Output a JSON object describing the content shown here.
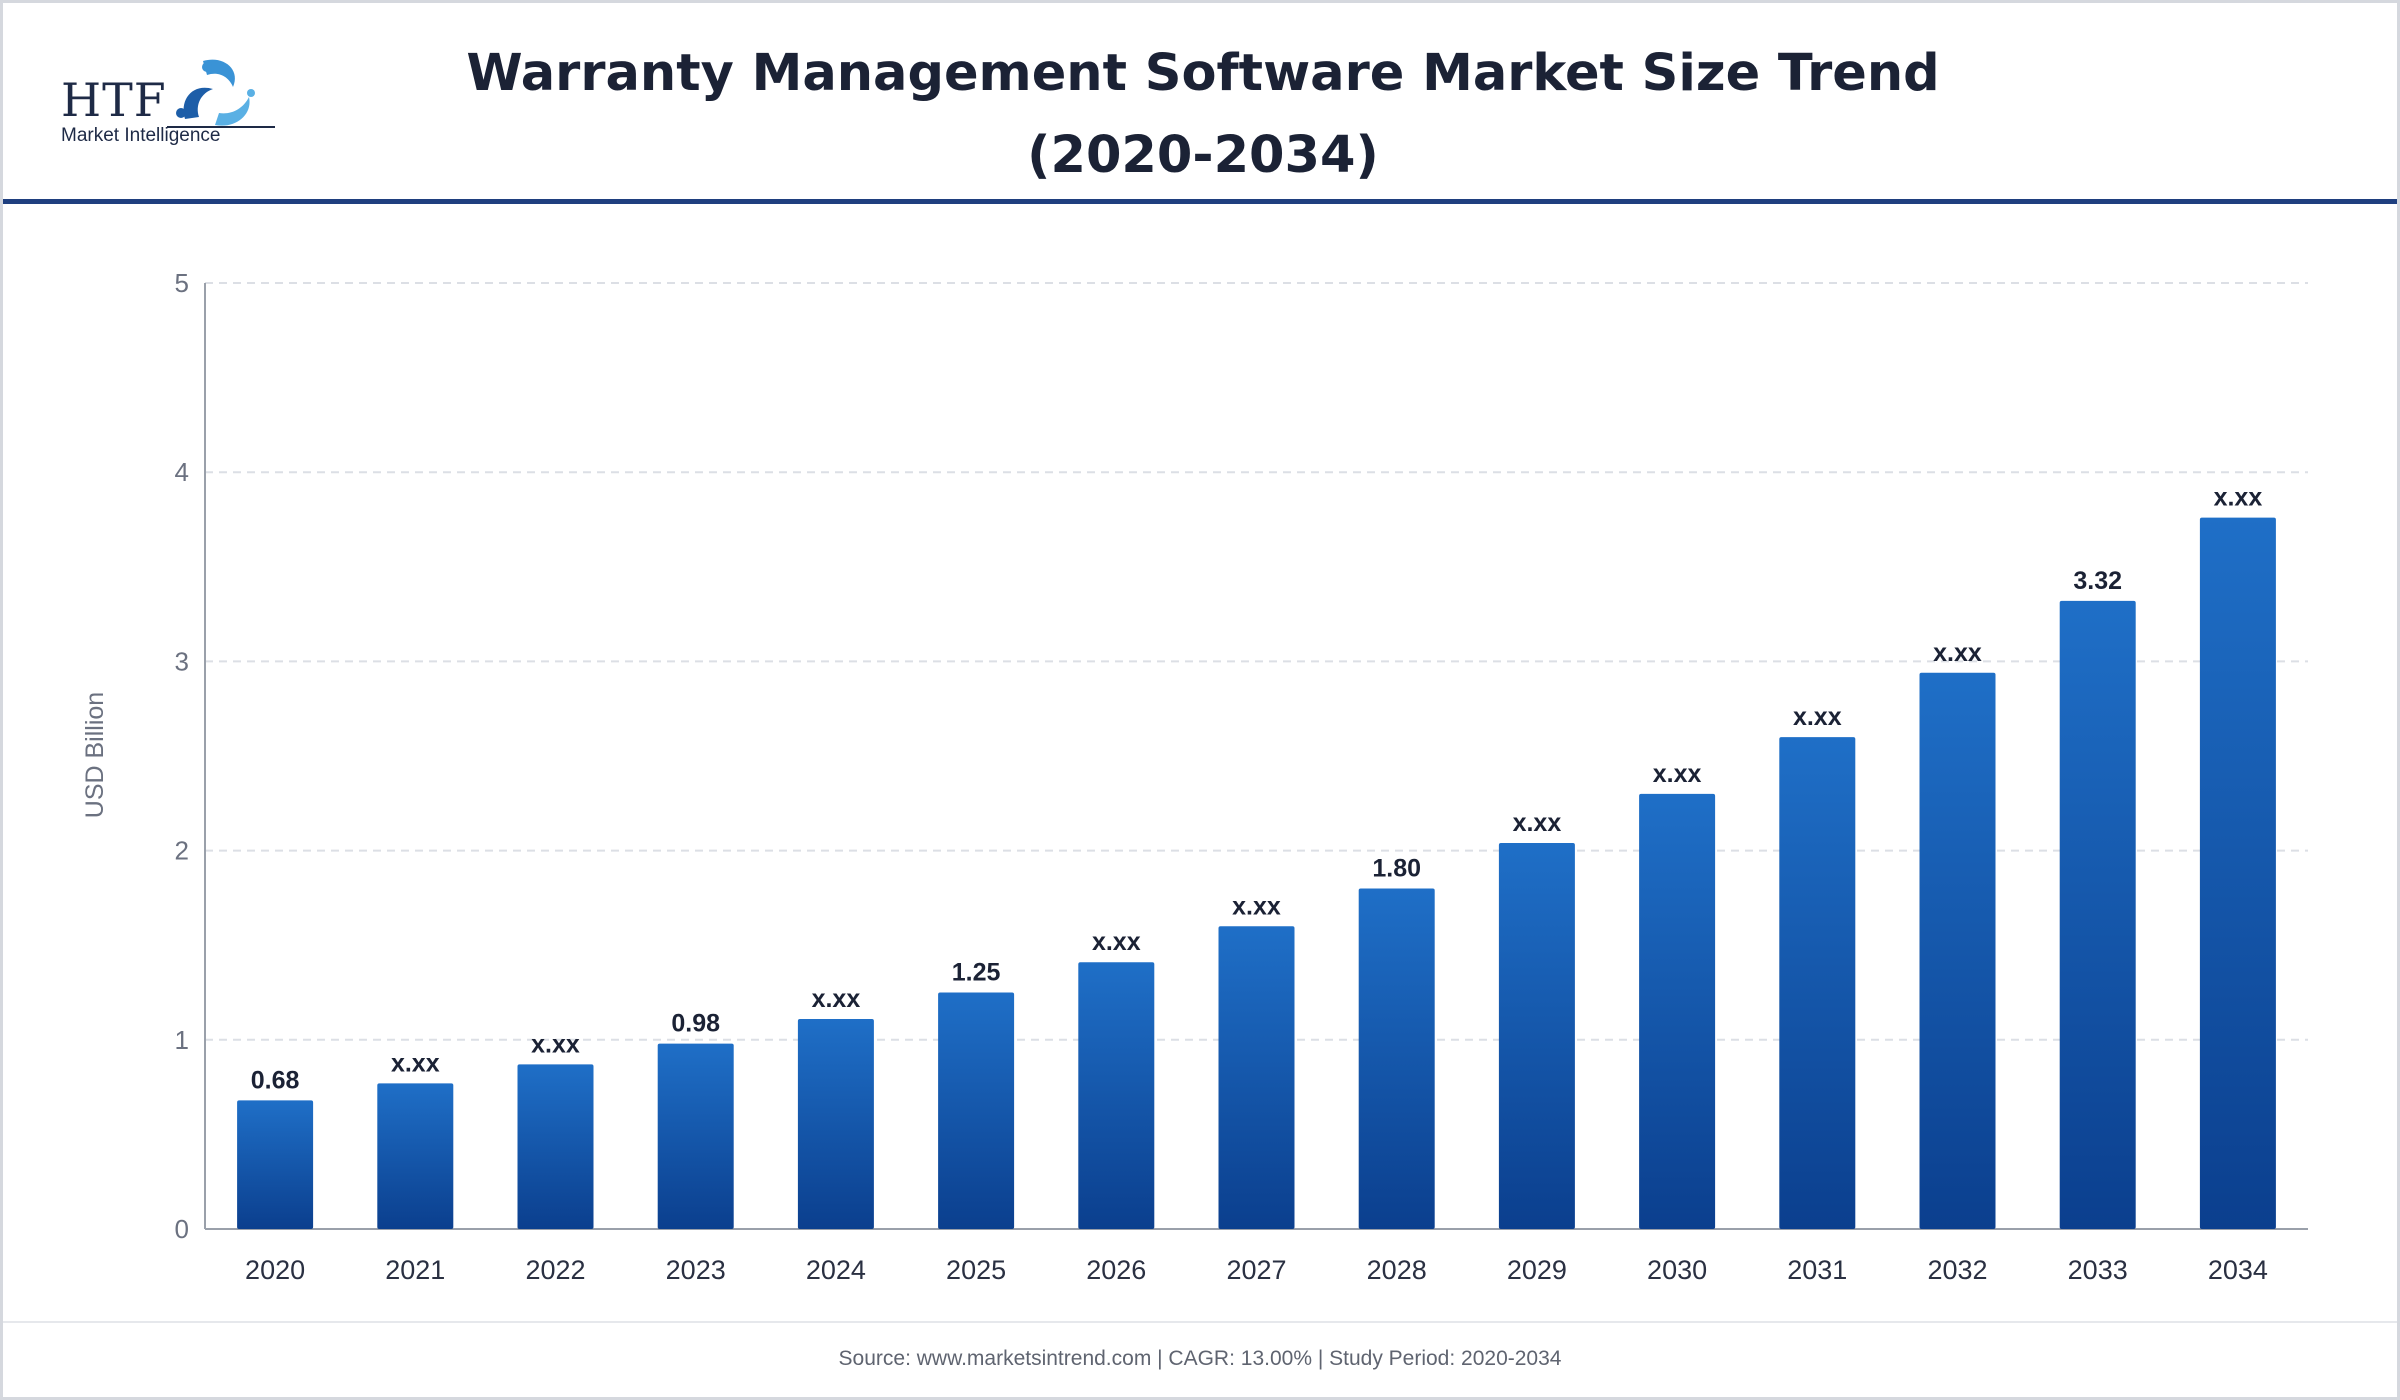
{
  "header": {
    "title": "Warranty Management Software Market Size Trend (2020-2034)",
    "logo": {
      "letters": "HTF",
      "tagline": "Market Intelligence",
      "icon": "swirl-figures-icon"
    }
  },
  "chart_data": {
    "type": "bar",
    "title": "Warranty Management Software Market Size Trend (2020-2034)",
    "ylabel": "USD Billion",
    "xlabel": "",
    "ylim": [
      0,
      5
    ],
    "yticks": [
      "0",
      "1",
      "2",
      "3",
      "4",
      "5"
    ],
    "grid": true,
    "legend": "none",
    "categories": [
      "2020",
      "2021",
      "2022",
      "2023",
      "2024",
      "2025",
      "2026",
      "2027",
      "2028",
      "2029",
      "2030",
      "2031",
      "2032",
      "2033",
      "2034"
    ],
    "values": [
      0.68,
      0.77,
      0.87,
      0.98,
      1.11,
      1.25,
      1.41,
      1.6,
      1.8,
      2.04,
      2.3,
      2.6,
      2.94,
      3.32,
      3.76
    ],
    "data_labels": [
      "0.68",
      "x.xx",
      "x.xx",
      "0.98",
      "x.xx",
      "1.25",
      "x.xx",
      "x.xx",
      "1.80",
      "x.xx",
      "x.xx",
      "x.xx",
      "x.xx",
      "3.32",
      "x.xx"
    ],
    "colors": {
      "bar_top": "#1f6fc7",
      "bar_bottom": "#0b3f8e",
      "grid": "#dcdfe5",
      "axis": "#9aa0aa"
    }
  },
  "footer": {
    "text": "Source: www.marketsintrend.com  |  CAGR: 13.00%  |  Study Period: 2020-2034"
  }
}
